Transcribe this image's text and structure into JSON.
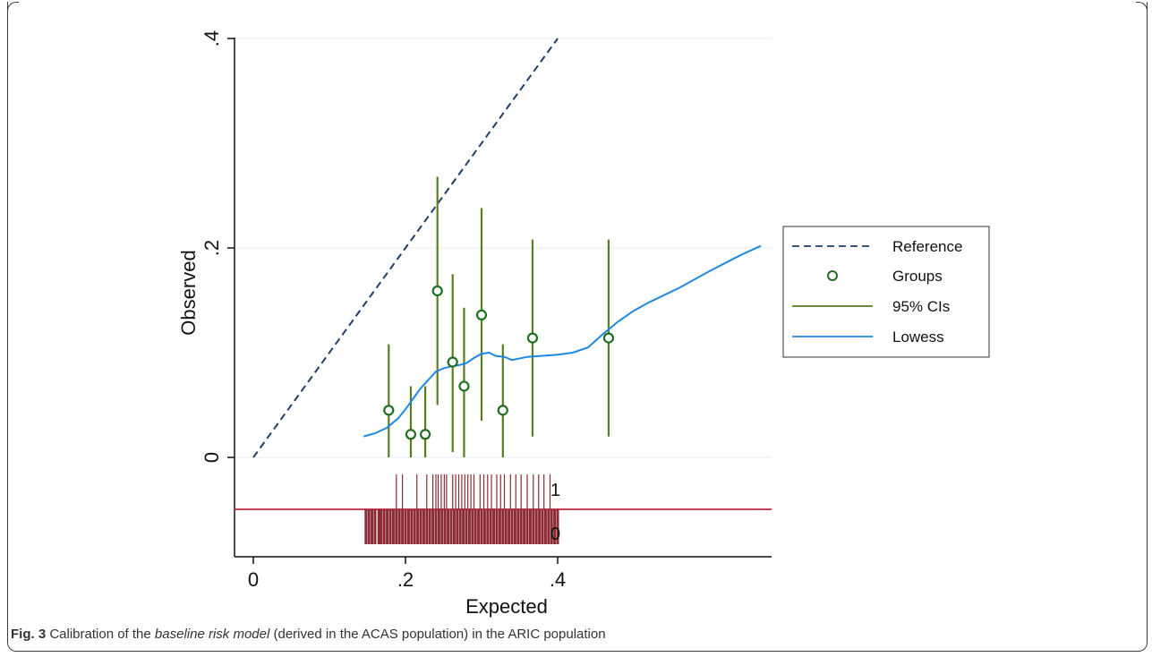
{
  "caption": {
    "label": "Fig. 3",
    "text_before": "Calibration of the",
    "text_italic": "baseline risk model",
    "text_after": "(derived in the ACAS population) in the ARIC population"
  },
  "chart_data": {
    "type": "scatter",
    "xlabel": "Expected",
    "ylabel": "Observed",
    "xlim": [
      0,
      0.68
    ],
    "ylim": [
      0,
      0.4
    ],
    "xticks": [
      {
        "value": 0,
        "label": "0"
      },
      {
        "value": 0.2,
        "label": ".2"
      },
      {
        "value": 0.4,
        "label": ".4"
      }
    ],
    "yticks": [
      {
        "value": 0,
        "label": "0"
      },
      {
        "value": 0.2,
        "label": ".2"
      },
      {
        "value": 0.4,
        "label": ".4"
      }
    ],
    "grid": true,
    "legend": {
      "position": "right",
      "entries": [
        {
          "label": "Reference",
          "style": "dashed",
          "color": "#1f3f66"
        },
        {
          "label": "Groups",
          "style": "circle",
          "color": "#1e6f1e"
        },
        {
          "label": "95% CIs",
          "style": "line",
          "color": "#5a7d22"
        },
        {
          "label": "Lowess",
          "style": "line",
          "color": "#1e88e5"
        }
      ]
    },
    "reference": {
      "x": [
        0,
        0.4
      ],
      "y": [
        0,
        0.4
      ],
      "color": "#1f3f66"
    },
    "groups": [
      {
        "x": 0.178,
        "y": 0.045,
        "ci_low": 0.0,
        "ci_high": 0.108
      },
      {
        "x": 0.207,
        "y": 0.022,
        "ci_low": 0.0,
        "ci_high": 0.068
      },
      {
        "x": 0.226,
        "y": 0.022,
        "ci_low": 0.0,
        "ci_high": 0.068
      },
      {
        "x": 0.242,
        "y": 0.159,
        "ci_low": 0.05,
        "ci_high": 0.268
      },
      {
        "x": 0.262,
        "y": 0.091,
        "ci_low": 0.005,
        "ci_high": 0.175
      },
      {
        "x": 0.277,
        "y": 0.068,
        "ci_low": 0.0,
        "ci_high": 0.143
      },
      {
        "x": 0.3,
        "y": 0.136,
        "ci_low": 0.035,
        "ci_high": 0.238
      },
      {
        "x": 0.328,
        "y": 0.045,
        "ci_low": 0.0,
        "ci_high": 0.108
      },
      {
        "x": 0.367,
        "y": 0.114,
        "ci_low": 0.02,
        "ci_high": 0.208
      },
      {
        "x": 0.467,
        "y": 0.114,
        "ci_low": 0.02,
        "ci_high": 0.208
      }
    ],
    "groups_color": "#1e6f1e",
    "ci_color": "#5a7d22",
    "lowess": {
      "color": "#1e88e5",
      "points": [
        [
          0.145,
          0.02
        ],
        [
          0.16,
          0.023
        ],
        [
          0.175,
          0.028
        ],
        [
          0.19,
          0.037
        ],
        [
          0.2,
          0.046
        ],
        [
          0.21,
          0.056
        ],
        [
          0.22,
          0.066
        ],
        [
          0.23,
          0.074
        ],
        [
          0.24,
          0.082
        ],
        [
          0.25,
          0.085
        ],
        [
          0.26,
          0.087
        ],
        [
          0.27,
          0.088
        ],
        [
          0.28,
          0.09
        ],
        [
          0.29,
          0.095
        ],
        [
          0.3,
          0.099
        ],
        [
          0.31,
          0.1
        ],
        [
          0.318,
          0.097
        ],
        [
          0.33,
          0.096
        ],
        [
          0.34,
          0.093
        ],
        [
          0.36,
          0.096
        ],
        [
          0.38,
          0.097
        ],
        [
          0.4,
          0.098
        ],
        [
          0.42,
          0.1
        ],
        [
          0.44,
          0.105
        ],
        [
          0.46,
          0.118
        ],
        [
          0.48,
          0.13
        ],
        [
          0.5,
          0.14
        ],
        [
          0.52,
          0.148
        ],
        [
          0.56,
          0.162
        ],
        [
          0.6,
          0.178
        ],
        [
          0.64,
          0.193
        ],
        [
          0.667,
          0.202
        ]
      ]
    },
    "rug": {
      "color": "#8b2b33",
      "baseline_color": "#c0263f",
      "outcome_labels": [
        "1",
        "0"
      ],
      "events": [
        0.188,
        0.196,
        0.215,
        0.228,
        0.236,
        0.24,
        0.243,
        0.247,
        0.251,
        0.254,
        0.262,
        0.266,
        0.27,
        0.274,
        0.278,
        0.282,
        0.286,
        0.29,
        0.298,
        0.303,
        0.308,
        0.313,
        0.32,
        0.325,
        0.33,
        0.338,
        0.345,
        0.352,
        0.36,
        0.368,
        0.375,
        0.382,
        0.39
      ],
      "non_events": [
        0.148,
        0.152,
        0.156,
        0.16,
        0.165,
        0.168,
        0.172,
        0.176,
        0.18,
        0.184,
        0.188,
        0.192,
        0.196,
        0.2,
        0.204,
        0.208,
        0.212,
        0.216,
        0.22,
        0.224,
        0.228,
        0.232,
        0.236,
        0.24,
        0.244,
        0.248,
        0.252,
        0.256,
        0.26,
        0.264,
        0.268,
        0.272,
        0.276,
        0.28,
        0.284,
        0.288,
        0.292,
        0.296,
        0.3,
        0.304,
        0.308,
        0.312,
        0.316,
        0.32,
        0.324,
        0.328,
        0.332,
        0.336,
        0.34,
        0.344,
        0.348,
        0.352,
        0.356,
        0.36,
        0.364,
        0.368,
        0.372,
        0.376,
        0.38,
        0.384,
        0.388,
        0.392,
        0.396,
        0.4
      ]
    }
  }
}
